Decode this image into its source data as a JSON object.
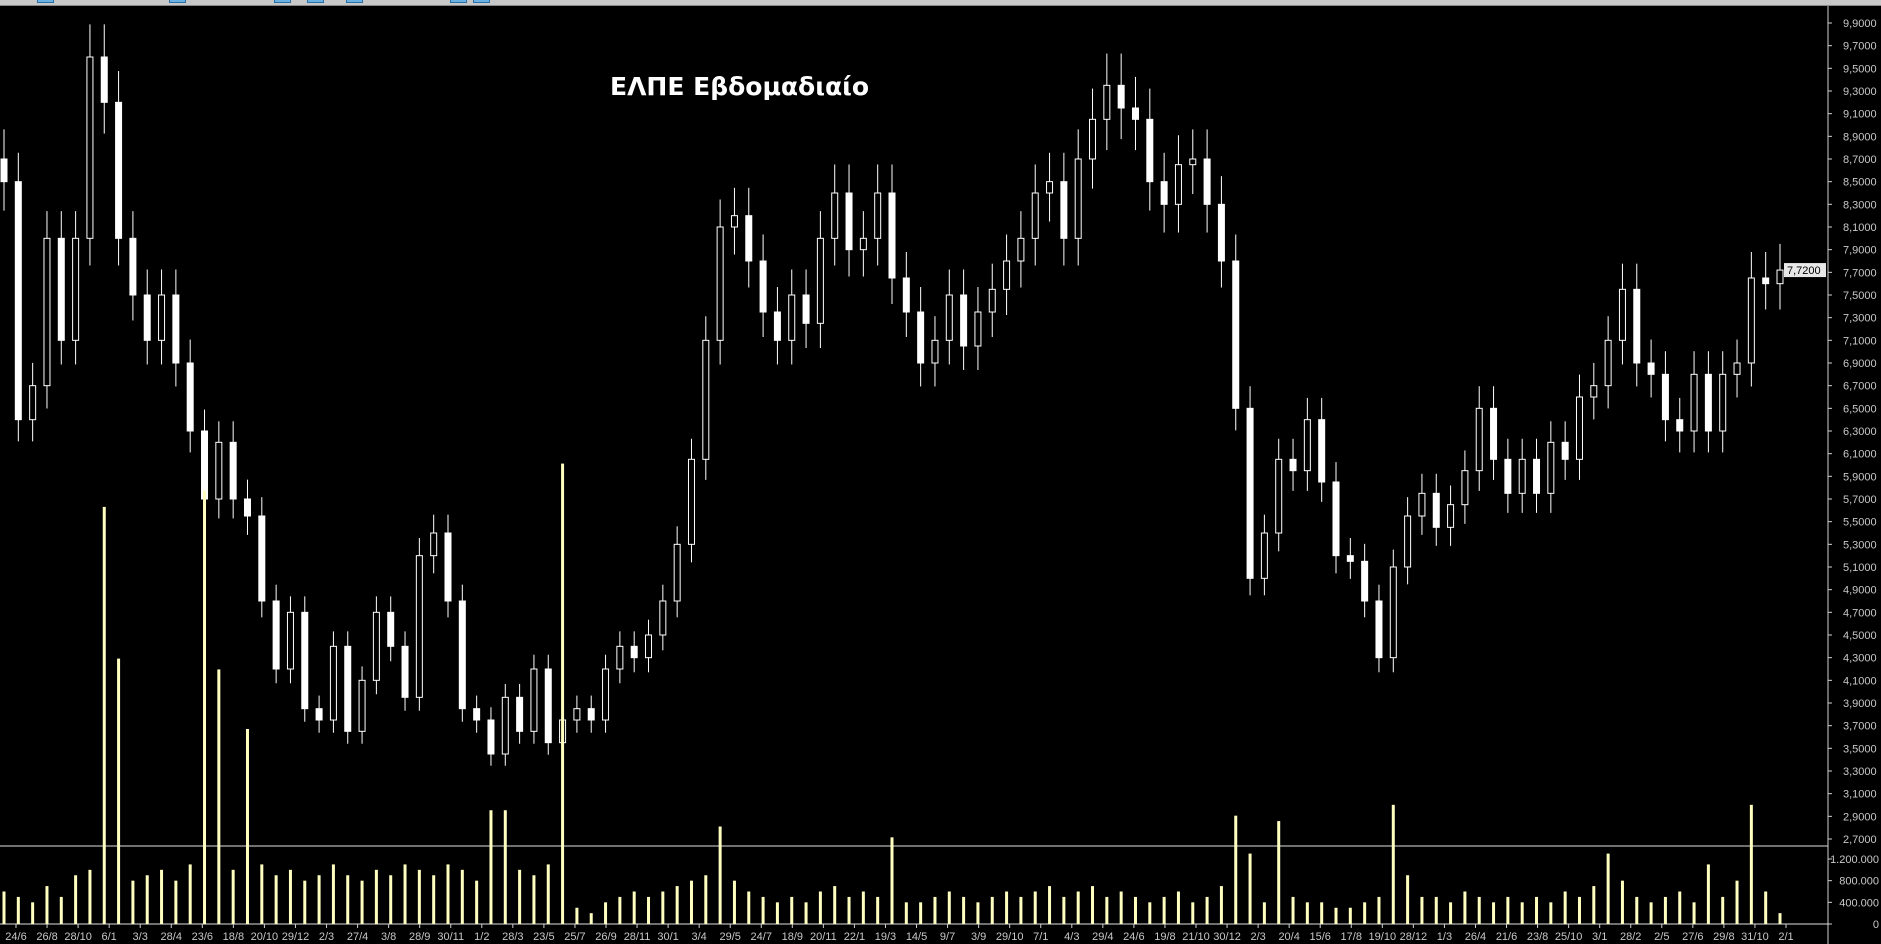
{
  "toolbar": {
    "buttons": [
      "toolbar-button",
      "toolbar-button",
      "toolbar-button",
      "toolbar-button",
      "toolbar-button",
      "toolbar-button",
      "toolbar-button"
    ]
  },
  "chart_data": {
    "type": "candlestick",
    "title": "ΕΛΠΕ Εβδομαδιαίο",
    "colors": {
      "background": "#000000",
      "candle": "#ffffff",
      "volume": "#ffffc0",
      "axis_text": "#c8c8c8"
    },
    "price_axis": {
      "range": [
        2.7,
        9.9
      ],
      "ticks": [
        "9,9000",
        "9,7000",
        "9,5000",
        "9,3000",
        "9,1000",
        "8,9000",
        "8,7000",
        "8,5000",
        "8,3000",
        "8,1000",
        "7,9000",
        "7,7000",
        "7,5000",
        "7,3000",
        "7,1000",
        "6,9000",
        "6,7000",
        "6,5000",
        "6,3000",
        "6,1000",
        "5,9000",
        "5,7000",
        "5,5000",
        "5,3000",
        "5,1000",
        "4,9000",
        "4,7000",
        "4,5000",
        "4,3000",
        "4,1000",
        "3,9000",
        "3,7000",
        "3,5000",
        "3,3000",
        "3,1000",
        "2,9000",
        "2,7000"
      ],
      "tick_values": [
        9.9,
        9.7,
        9.5,
        9.3,
        9.1,
        8.9,
        8.7,
        8.5,
        8.3,
        8.1,
        7.9,
        7.7,
        7.5,
        7.3,
        7.1,
        6.9,
        6.7,
        6.5,
        6.3,
        6.1,
        5.9,
        5.7,
        5.5,
        5.3,
        5.1,
        4.9,
        4.7,
        4.5,
        4.3,
        4.1,
        3.9,
        3.7,
        3.5,
        3.3,
        3.1,
        2.9,
        2.7
      ],
      "current_price_label": "7,7200",
      "current_price": 7.72
    },
    "volume_axis": {
      "ticks": [
        "1.200.000",
        "800.000",
        "400.000",
        "0"
      ],
      "tick_values": [
        1200000,
        800000,
        400000,
        0
      ]
    },
    "x_tick_labels": [
      "24/6",
      "26/8",
      "28/10",
      "6/1",
      "3/3",
      "28/4",
      "23/6",
      "18/8",
      "20/10",
      "29/12",
      "2/3",
      "27/4",
      "3/8",
      "28/9",
      "30/11",
      "1/2",
      "28/3",
      "23/5",
      "25/7",
      "26/9",
      "28/11",
      "30/1",
      "3/4",
      "29/5",
      "24/7",
      "18/9",
      "20/11",
      "22/1",
      "19/3",
      "14/5",
      "9/7",
      "3/9",
      "29/10",
      "7/1",
      "4/3",
      "29/4",
      "24/6",
      "19/8",
      "21/10",
      "30/12",
      "2/3",
      "20/4",
      "15/6",
      "17/8",
      "19/10",
      "28/12",
      "1/3",
      "26/4",
      "21/6",
      "23/8",
      "25/10",
      "3/1",
      "28/2",
      "2/5",
      "27/6",
      "29/8",
      "31/10",
      "2/1"
    ],
    "closes": [
      8.5,
      6.4,
      6.7,
      8.0,
      7.1,
      8.0,
      9.6,
      9.2,
      8.0,
      7.5,
      7.1,
      7.5,
      6.9,
      6.3,
      5.7,
      6.2,
      5.7,
      5.55,
      4.8,
      4.2,
      4.7,
      3.85,
      3.75,
      4.4,
      3.65,
      4.1,
      4.7,
      4.4,
      3.95,
      5.2,
      5.4,
      4.8,
      3.85,
      3.75,
      3.45,
      3.95,
      3.65,
      4.2,
      3.55,
      3.75,
      3.85,
      3.75,
      4.2,
      4.4,
      4.3,
      4.5,
      4.8,
      5.3,
      6.05,
      7.1,
      8.1,
      8.2,
      7.8,
      7.35,
      7.1,
      7.5,
      7.25,
      8.0,
      8.4,
      7.9,
      8.0,
      8.4,
      7.65,
      7.35,
      6.9,
      7.1,
      7.5,
      7.05,
      7.35,
      7.55,
      7.8,
      8.0,
      8.4,
      8.5,
      8.0,
      8.7,
      9.05,
      9.35,
      9.15,
      9.05,
      8.5,
      8.3,
      8.65,
      8.7,
      8.3,
      7.8,
      6.5,
      5.0,
      5.4,
      6.05,
      5.95,
      6.4,
      5.85,
      5.2,
      5.15,
      4.8,
      4.3,
      5.1,
      5.55,
      5.75,
      5.45,
      5.65,
      5.95,
      6.5,
      6.05,
      5.75,
      6.05,
      5.75,
      6.2,
      6.05,
      6.6,
      6.7,
      7.1,
      7.55,
      6.9,
      6.8,
      6.4,
      6.3,
      6.8,
      6.3,
      6.8,
      6.9,
      7.65,
      7.6,
      7.72
    ],
    "volumes": [
      600000,
      500000,
      400000,
      700000,
      500000,
      900000,
      1000000,
      7700000,
      4900000,
      800000,
      900000,
      1000000,
      800000,
      1100000,
      8000000,
      4700000,
      1000000,
      3600000,
      1100000,
      900000,
      1000000,
      800000,
      900000,
      1100000,
      900000,
      800000,
      1000000,
      900000,
      1100000,
      1000000,
      900000,
      1100000,
      1000000,
      800000,
      2100000,
      2100000,
      1000000,
      900000,
      1100000,
      8500000,
      300000,
      200000,
      400000,
      500000,
      600000,
      500000,
      600000,
      700000,
      800000,
      900000,
      1800000,
      800000,
      600000,
      500000,
      400000,
      500000,
      400000,
      600000,
      700000,
      500000,
      600000,
      500000,
      1600000,
      400000,
      400000,
      500000,
      600000,
      500000,
      400000,
      500000,
      600000,
      500000,
      600000,
      700000,
      500000,
      600000,
      700000,
      500000,
      600000,
      500000,
      400000,
      500000,
      600000,
      400000,
      500000,
      700000,
      2000000,
      1300000,
      400000,
      1900000,
      500000,
      400000,
      400000,
      300000,
      300000,
      400000,
      500000,
      2200000,
      900000,
      500000,
      500000,
      400000,
      600000,
      500000,
      400000,
      500000,
      400000,
      500000,
      400000,
      600000,
      500000,
      700000,
      1300000,
      800000,
      500000,
      400000,
      500000,
      600000,
      400000,
      1100000,
      500000,
      800000,
      2200000,
      600000,
      200000
    ],
    "grid": false
  }
}
